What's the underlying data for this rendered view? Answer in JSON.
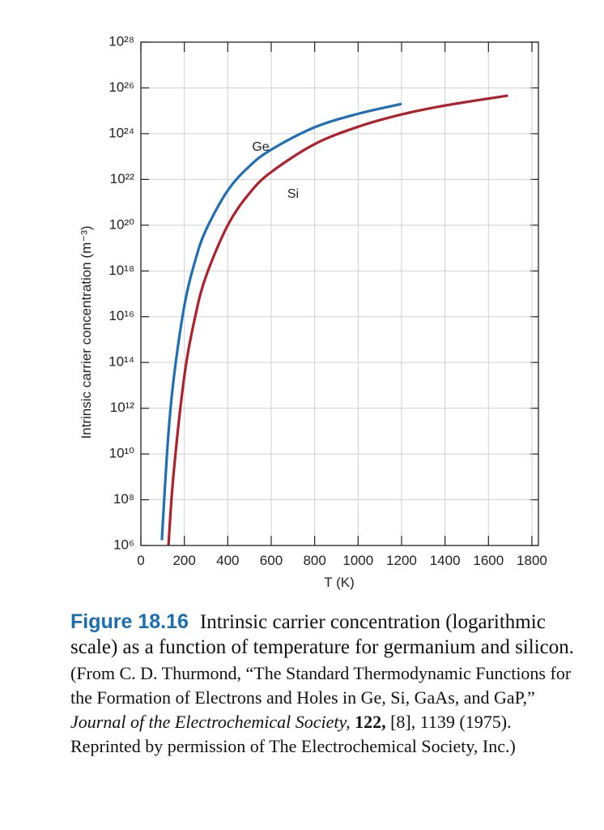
{
  "chart_data": {
    "type": "line",
    "y_label": "Intrinsic carrier concentration (m⁻³)",
    "x_label": "T (K)",
    "yscale": "log",
    "grid": true,
    "xlim": [
      0,
      1830
    ],
    "xticks": [
      0,
      200,
      400,
      600,
      800,
      1000,
      1200,
      1400,
      1600,
      1800
    ],
    "ylim": [
      1000000.0,
      1e+28
    ],
    "yticks": [
      {
        "value": 1000000.0,
        "label": "10⁶"
      },
      {
        "value": 100000000.0,
        "label": "10⁸"
      },
      {
        "value": 10000000000.0,
        "label": "10¹⁰"
      },
      {
        "value": 1000000000000.0,
        "label": "10¹²"
      },
      {
        "value": 100000000000000.0,
        "label": "10¹⁴"
      },
      {
        "value": 1e+16,
        "label": "10¹⁶"
      },
      {
        "value": 1e+18,
        "label": "10¹⁸"
      },
      {
        "value": 1e+20,
        "label": "10²⁰"
      },
      {
        "value": 1e+22,
        "label": "10²²"
      },
      {
        "value": 1e+24,
        "label": "10²⁴"
      },
      {
        "value": 1e+26,
        "label": "10²⁶"
      },
      {
        "value": 1e+28,
        "label": "10²⁸"
      }
    ],
    "series": [
      {
        "name": "Ge",
        "color": "#1f6fb5",
        "x": [
          97,
          100,
          125,
          150,
          200,
          250,
          300,
          400,
          500,
          600,
          800,
          1000,
          1200
        ],
        "values": [
          1700000.0,
          6600000.0,
          45000000000.0,
          16000000000000.0,
          3e+16,
          2.8e+18,
          6.3e+19,
          3.3e+21,
          3.8e+22,
          2e+23,
          1.9e+24,
          7.4e+24,
          2e+25
        ]
      },
      {
        "name": "Si",
        "color": "#b0202a",
        "x": [
          127,
          150,
          200,
          250,
          300,
          400,
          500,
          600,
          800,
          1000,
          1200,
          1400,
          1690
        ],
        "values": [
          1000000.0,
          1200000000.0,
          25000000000000.0,
          1e+16,
          5.9e+17,
          1e+20,
          2.5e+21,
          2.1e+22,
          3.5e+23,
          2e+24,
          6.9e+24,
          1.7e+25,
          4.6e+25
        ]
      }
    ]
  },
  "caption": {
    "figure_label": "Figure 18.16",
    "text": "Intrinsic carrier concentration (logarithmic scale) as a function of temperature for germanium and silicon.",
    "source_start": "(From C. D. Thurmond, “The Standard Thermodynamic Functions for the Formation of Electrons and Holes in Ge, Si, GaAs, and GaP,”",
    "source_journal": "Journal of the Electrochemical Society,",
    "source_volume": "122,",
    "source_end": "[8], 1139 (1975). Reprinted by permission of The Electrochemical Society, Inc.)"
  }
}
